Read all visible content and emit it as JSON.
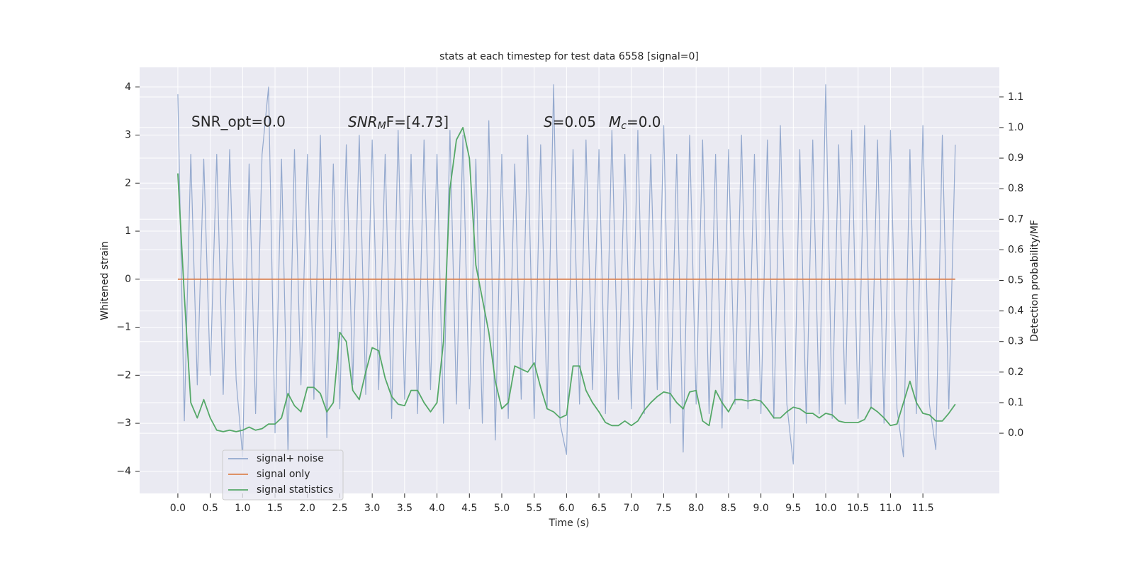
{
  "chart_data": {
    "type": "line",
    "title": "stats at each timestep for test data 6558 [signal=0]",
    "x_label": "Time (s)",
    "y_label": "Whitened strain",
    "y2_label": "Detection probability/MF",
    "annotations": [
      {
        "text": "SNR_opt=0.0"
      },
      {
        "base": "SNR",
        "sub": "M",
        "tail": "F=[4.73]"
      },
      {
        "base": "S",
        "tail": "=0.05"
      },
      {
        "base": "M",
        "sub": "c",
        "tail": "=0.0"
      }
    ],
    "x": [
      0.0,
      0.1,
      0.2,
      0.3,
      0.4,
      0.5,
      0.6,
      0.7,
      0.8,
      0.9,
      1.0,
      1.1,
      1.2,
      1.3,
      1.4,
      1.5,
      1.6,
      1.7,
      1.8,
      1.9,
      2.0,
      2.1,
      2.2,
      2.3,
      2.4,
      2.5,
      2.6,
      2.7,
      2.8,
      2.9,
      3.0,
      3.1,
      3.2,
      3.3,
      3.4,
      3.5,
      3.6,
      3.7,
      3.8,
      3.9,
      4.0,
      4.1,
      4.2,
      4.3,
      4.4,
      4.5,
      4.6,
      4.7,
      4.8,
      4.9,
      5.0,
      5.1,
      5.2,
      5.3,
      5.4,
      5.5,
      5.6,
      5.7,
      5.8,
      5.9,
      6.0,
      6.1,
      6.2,
      6.3,
      6.4,
      6.5,
      6.6,
      6.7,
      6.8,
      6.9,
      7.0,
      7.1,
      7.2,
      7.3,
      7.4,
      7.5,
      7.6,
      7.7,
      7.8,
      7.9,
      8.0,
      8.1,
      8.2,
      8.3,
      8.4,
      8.5,
      8.6,
      8.7,
      8.8,
      8.9,
      9.0,
      9.1,
      9.2,
      9.3,
      9.4,
      9.5,
      9.6,
      9.7,
      9.8,
      9.9,
      10.0,
      10.1,
      10.2,
      10.3,
      10.4,
      10.5,
      10.6,
      10.7,
      10.8,
      10.9,
      11.0,
      11.1,
      11.2,
      11.3,
      11.4,
      11.5,
      11.6,
      11.7,
      11.8,
      11.9,
      12.0
    ],
    "series": [
      {
        "name": "signal+ noise",
        "color": "#4c72b0",
        "values": [
          3.85,
          -2.95,
          2.6,
          -2.2,
          2.5,
          -2.0,
          2.6,
          -2.4,
          2.7,
          -2.1,
          -3.7,
          2.4,
          -2.8,
          2.6,
          4.0,
          -3.2,
          2.5,
          -3.6,
          2.7,
          -2.2,
          2.6,
          -2.5,
          3.0,
          -3.3,
          2.4,
          -2.7,
          2.8,
          -2.2,
          3.0,
          -2.4,
          2.9,
          -2.3,
          2.6,
          -2.9,
          3.1,
          -2.5,
          2.6,
          -2.8,
          2.9,
          -2.3,
          2.6,
          -3.0,
          3.1,
          -2.6,
          3.0,
          -2.7,
          2.5,
          -3.0,
          3.3,
          -3.35,
          2.6,
          -2.9,
          2.4,
          -2.5,
          3.0,
          -2.9,
          2.8,
          -2.7,
          4.05,
          -3.0,
          -3.65,
          2.7,
          -2.6,
          2.9,
          -2.3,
          2.7,
          -2.8,
          3.1,
          -2.5,
          2.6,
          -2.7,
          3.1,
          -2.8,
          2.6,
          -2.3,
          3.2,
          -3.0,
          2.6,
          -3.6,
          3.0,
          -2.6,
          2.9,
          -2.8,
          2.6,
          -3.1,
          2.7,
          -2.6,
          3.0,
          -2.7,
          2.6,
          -2.8,
          2.9,
          -2.9,
          3.2,
          -2.6,
          -3.85,
          2.7,
          -3.0,
          2.9,
          -2.8,
          4.05,
          -2.9,
          2.8,
          -2.6,
          3.1,
          -2.9,
          3.2,
          -2.7,
          2.9,
          -3.0,
          3.1,
          -2.7,
          -3.7,
          2.7,
          -2.8,
          3.2,
          -2.6,
          -3.55,
          3.0,
          -2.7,
          2.8
        ]
      },
      {
        "name": "signal only",
        "color": "#dd8452",
        "values": [
          0,
          0,
          0,
          0,
          0,
          0,
          0,
          0,
          0,
          0,
          0,
          0,
          0,
          0,
          0,
          0,
          0,
          0,
          0,
          0,
          0,
          0,
          0,
          0,
          0,
          0,
          0,
          0,
          0,
          0,
          0,
          0,
          0,
          0,
          0,
          0,
          0,
          0,
          0,
          0,
          0,
          0,
          0,
          0,
          0,
          0,
          0,
          0,
          0,
          0,
          0,
          0,
          0,
          0,
          0,
          0,
          0,
          0,
          0,
          0,
          0,
          0,
          0,
          0,
          0,
          0,
          0,
          0,
          0,
          0,
          0,
          0,
          0,
          0,
          0,
          0,
          0,
          0,
          0,
          0,
          0,
          0,
          0,
          0,
          0,
          0,
          0,
          0,
          0,
          0,
          0,
          0,
          0,
          0,
          0,
          0,
          0,
          0,
          0,
          0,
          0,
          0,
          0,
          0,
          0,
          0,
          0,
          0,
          0,
          0,
          0,
          0,
          0,
          0,
          0,
          0,
          0,
          0,
          0,
          0,
          0
        ]
      },
      {
        "name": "signal statistics",
        "color": "#55a868",
        "axis": "y2",
        "values": [
          0.85,
          0.45,
          0.1,
          0.05,
          0.11,
          0.05,
          0.01,
          0.005,
          0.01,
          0.005,
          0.01,
          0.02,
          0.01,
          0.015,
          0.03,
          0.03,
          0.05,
          0.13,
          0.09,
          0.07,
          0.15,
          0.15,
          0.13,
          0.07,
          0.1,
          0.33,
          0.3,
          0.14,
          0.11,
          0.2,
          0.28,
          0.27,
          0.18,
          0.12,
          0.095,
          0.09,
          0.14,
          0.14,
          0.1,
          0.07,
          0.1,
          0.3,
          0.8,
          0.96,
          1.0,
          0.9,
          0.55,
          0.44,
          0.33,
          0.17,
          0.08,
          0.1,
          0.22,
          0.21,
          0.2,
          0.23,
          0.15,
          0.08,
          0.07,
          0.05,
          0.06,
          0.22,
          0.22,
          0.14,
          0.1,
          0.07,
          0.035,
          0.025,
          0.025,
          0.04,
          0.025,
          0.04,
          0.075,
          0.1,
          0.12,
          0.135,
          0.13,
          0.1,
          0.08,
          0.135,
          0.14,
          0.04,
          0.025,
          0.14,
          0.1,
          0.07,
          0.11,
          0.11,
          0.105,
          0.11,
          0.105,
          0.08,
          0.05,
          0.05,
          0.07,
          0.085,
          0.08,
          0.065,
          0.065,
          0.05,
          0.065,
          0.06,
          0.04,
          0.035,
          0.035,
          0.035,
          0.045,
          0.085,
          0.07,
          0.05,
          0.025,
          0.03,
          0.1,
          0.17,
          0.1,
          0.065,
          0.06,
          0.04,
          0.04,
          0.065,
          0.095
        ]
      }
    ],
    "xlim": [
      -0.59,
      12.68
    ],
    "xticks": [
      {
        "value": 0,
        "label": "0.0"
      },
      {
        "value": 0.5,
        "label": "0.5"
      },
      {
        "value": 1,
        "label": "1.0"
      },
      {
        "value": 1.5,
        "label": "1.5"
      },
      {
        "value": 2,
        "label": "2.0"
      },
      {
        "value": 2.5,
        "label": "2.5"
      },
      {
        "value": 3,
        "label": "3.0"
      },
      {
        "value": 3.5,
        "label": "3.5"
      },
      {
        "value": 4,
        "label": "4.0"
      },
      {
        "value": 4.5,
        "label": "4.5"
      },
      {
        "value": 5,
        "label": "5.0"
      },
      {
        "value": 5.5,
        "label": "5.5"
      },
      {
        "value": 6,
        "label": "6.0"
      },
      {
        "value": 6.5,
        "label": "6.5"
      },
      {
        "value": 7,
        "label": "7.0"
      },
      {
        "value": 7.5,
        "label": "7.5"
      },
      {
        "value": 8,
        "label": "8.0"
      },
      {
        "value": 8.5,
        "label": "8.5"
      },
      {
        "value": 9,
        "label": "9.0"
      },
      {
        "value": 9.5,
        "label": "9.5"
      },
      {
        "value": 10,
        "label": "10.0"
      },
      {
        "value": 10.5,
        "label": "10.5"
      },
      {
        "value": 11,
        "label": "11.0"
      },
      {
        "value": 11.5,
        "label": "11.5"
      }
    ],
    "ylim": [
      -4.46,
      4.41
    ],
    "yticks": [
      {
        "value": -4,
        "label": "−4"
      },
      {
        "value": -3,
        "label": "−3"
      },
      {
        "value": -2,
        "label": "−2"
      },
      {
        "value": -1,
        "label": "−1"
      },
      0,
      1,
      2,
      3,
      4
    ],
    "y2lim": [
      -0.197,
      1.197
    ],
    "y2ticks": [
      {
        "value": 0,
        "label": "0.0"
      },
      0.1,
      0.2,
      0.3,
      0.4,
      0.5,
      0.6,
      0.7,
      0.8,
      0.9,
      {
        "value": 1,
        "label": "1.0"
      },
      1.1
    ],
    "grid": true,
    "legend": "lower left"
  }
}
